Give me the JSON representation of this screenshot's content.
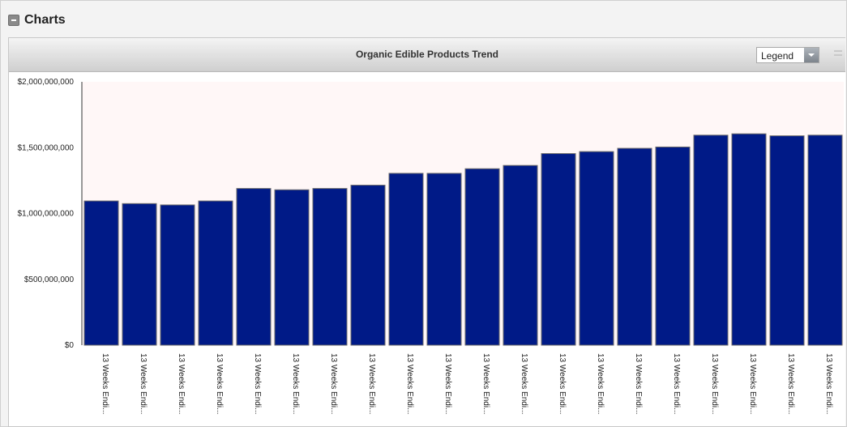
{
  "section": {
    "title": "Charts"
  },
  "panel": {
    "legend_select": "Legend"
  },
  "chart_data": {
    "type": "bar",
    "title": "Organic Edible Products Trend",
    "xlabel": "",
    "ylabel": "",
    "ylim": [
      0,
      2000000000
    ],
    "yticks": [
      0,
      500000000,
      1000000000,
      1500000000,
      2000000000
    ],
    "ytick_labels": [
      "$0",
      "$500,000,000",
      "$1,000,000,000",
      "$1,500,000,000",
      "$2,000,000,000"
    ],
    "categories": [
      "13 Weeks Endi...",
      "13 Weeks Endi...",
      "13 Weeks Endi...",
      "13 Weeks Endi...",
      "13 Weeks Endi...",
      "13 Weeks Endi...",
      "13 Weeks Endi...",
      "13 Weeks Endi...",
      "13 Weeks Endi...",
      "13 Weeks Endi...",
      "13 Weeks Endi...",
      "13 Weeks Endi...",
      "13 Weeks Endi...",
      "13 Weeks Endi...",
      "13 Weeks Endi...",
      "13 Weeks Endi...",
      "13 Weeks Endi...",
      "13 Weeks Endi...",
      "13 Weeks Endi...",
      "13 Weeks Endi..."
    ],
    "values": [
      1095000000,
      1075000000,
      1065000000,
      1095000000,
      1190000000,
      1180000000,
      1190000000,
      1215000000,
      1305000000,
      1305000000,
      1340000000,
      1365000000,
      1455000000,
      1470000000,
      1495000000,
      1505000000,
      1595000000,
      1605000000,
      1590000000,
      1595000000
    ],
    "bar_color": "#001a87",
    "plot_background": "#fff7f7",
    "grid": false,
    "legend": "hidden"
  }
}
